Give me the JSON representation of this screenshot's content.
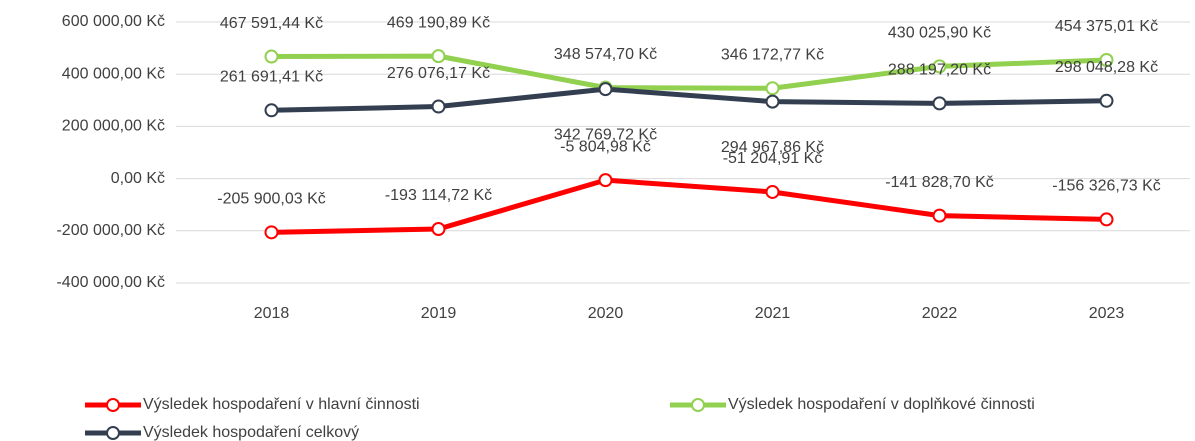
{
  "chart_data": {
    "type": "line",
    "categories": [
      "2018",
      "2019",
      "2020",
      "2021",
      "2022",
      "2023"
    ],
    "ylim": [
      -400000,
      600000
    ],
    "yticks": [
      {
        "value": -400000,
        "label": "-400 000,00 Kč"
      },
      {
        "value": -200000,
        "label": "-200 000,00 Kč"
      },
      {
        "value": 0,
        "label": "0,00 Kč"
      },
      {
        "value": 200000,
        "label": "200 000,00 Kč"
      },
      {
        "value": 400000,
        "label": "400 000,00 Kč"
      },
      {
        "value": 600000,
        "label": "600 000,00 Kč"
      }
    ],
    "grid": true,
    "legend": "bottom",
    "series": [
      {
        "name": "Výsledek hospodaření v hlavní činnosti",
        "color": "#ff0000",
        "values": [
          -205900.03,
          -193114.72,
          -5804.98,
          -51204.91,
          -141828.7,
          -156326.73
        ],
        "value_labels": [
          "-205 900,03 Kč",
          "-193 114,72 Kč",
          "-5 804,98 Kč",
          "-51 204,91 Kč",
          "-141 828,70 Kč",
          "-156 326,73 Kč"
        ]
      },
      {
        "name": "Výsledek hospodaření v doplňkové činnosti",
        "color": "#92d050",
        "values": [
          467591.44,
          469190.89,
          348574.7,
          346172.77,
          430025.9,
          454375.01
        ],
        "value_labels": [
          "467 591,44 Kč",
          "469 190,89 Kč",
          "348 574,70 Kč",
          "346 172,77 Kč",
          "430 025,90 Kč",
          "454 375,01 Kč"
        ]
      },
      {
        "name": "Výsledek hospodaření celkový",
        "color": "#333f50",
        "values": [
          261691.41,
          276076.17,
          342769.72,
          294967.86,
          288197.2,
          298048.28
        ],
        "value_labels": [
          "261 691,41 Kč",
          "276 076,17 Kč",
          "342 769,72 Kč",
          "294 967,86 Kč",
          "288 197,20 Kč",
          "298 048,28 Kč"
        ]
      }
    ]
  }
}
